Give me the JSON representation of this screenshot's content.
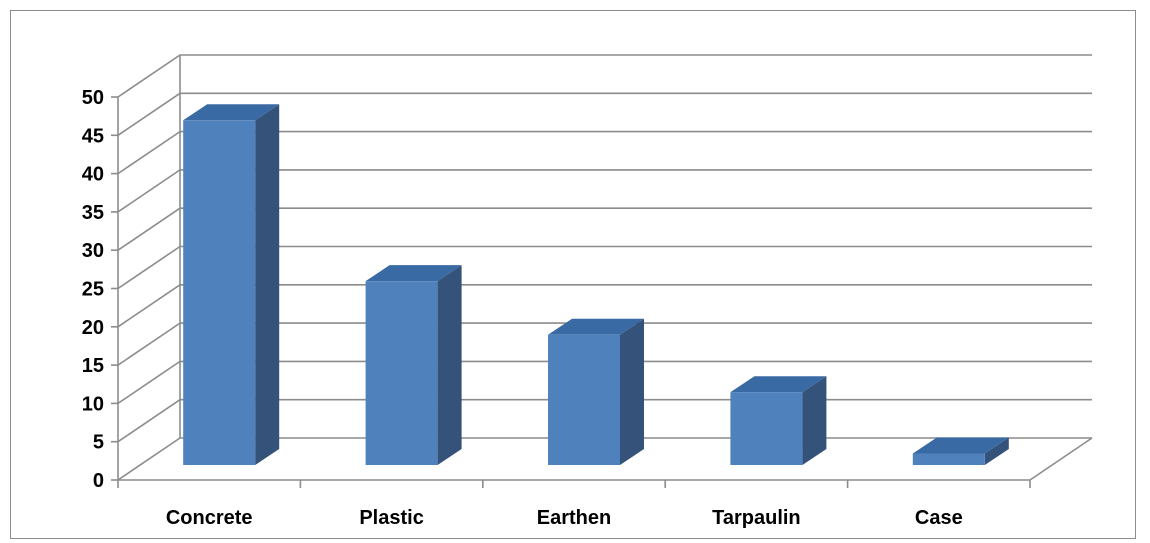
{
  "chart_data": {
    "type": "bar",
    "title": "",
    "xlabel": "",
    "ylabel": "",
    "categories": [
      "Concrete",
      "Plastic",
      "Earthen",
      "Tarpaulin",
      "Case"
    ],
    "values": [
      45,
      24,
      17,
      9.5,
      1.5
    ],
    "ylim": [
      0,
      50
    ],
    "yticks": [
      0,
      5,
      10,
      15,
      20,
      25,
      30,
      35,
      40,
      45,
      50
    ],
    "grid": true,
    "three_d": true,
    "legend": "none",
    "colors": {
      "bar_front": "#4f81bd",
      "bar_side": "#34527a",
      "bar_top": "#3a6aa3",
      "gridline": "#8c8c8c",
      "text": "#000000"
    }
  }
}
